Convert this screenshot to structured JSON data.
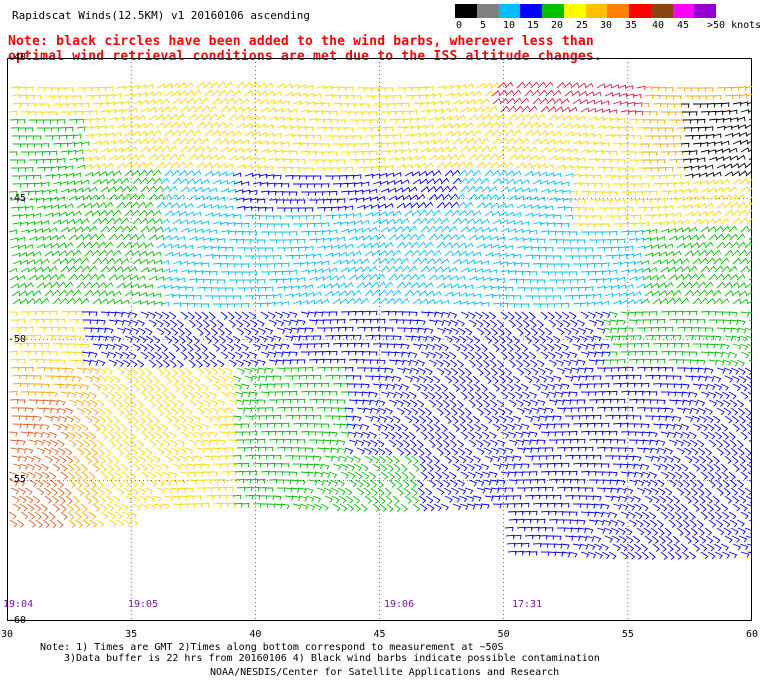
{
  "header": {
    "title": "Rapidscat Winds(12.5KM) v1 20160106 ascending",
    "note_line1": "Note: black circles have been added to the wind barbs, wherever less than",
    "note_line2": "optimal wind retrieval conditions are met due to the ISS altitude changes."
  },
  "legend": {
    "labels": [
      "0",
      "5",
      "10",
      "15",
      "20",
      "25",
      "30",
      "35",
      "40",
      "45",
      ">50 knots"
    ],
    "colors": [
      "#000000",
      "#808080",
      "#00bfff",
      "#0000ff",
      "#00c000",
      "#ffff00",
      "#ffc000",
      "#ff7f00",
      "#ff0000",
      "#8b4513",
      "#ff00ff",
      "#9400d3"
    ]
  },
  "map": {
    "lat_labels": [
      "-40",
      "-45",
      "-50",
      "-55",
      "-60"
    ],
    "lon_labels": [
      "30",
      "35",
      "40",
      "45",
      "50",
      "55",
      "60"
    ],
    "time_labels": [
      "19:04",
      "19:05",
      "19:06",
      "17:31"
    ],
    "barb_colors": {
      "lt5": "#000000",
      "5_10": "#00bfff",
      "10_15": "#0000ff",
      "15_20": "#00c000",
      "20_25": "#ffd700",
      "25_30": "#ffa500",
      "30_35": "#e06020",
      "35_40": "#d02040",
      "contam": "#000000"
    }
  },
  "footer": {
    "line1": "Note: 1) Times are GMT 2)Times along bottom correspond to measurement at ~50S",
    "line2": "3)Data buffer is 22 hrs from 20160106 4) Black wind barbs indicate possible contamination",
    "line3": "NOAA/NESDIS/Center for Satellite Applications and Research"
  }
}
